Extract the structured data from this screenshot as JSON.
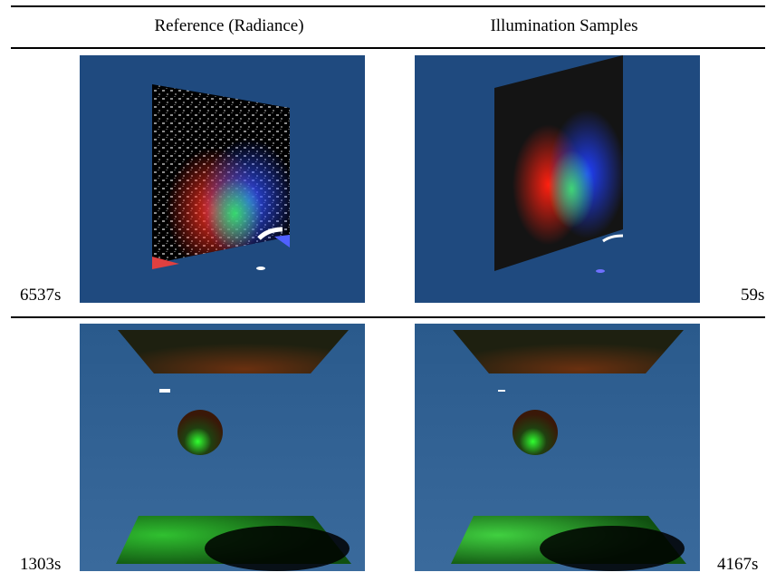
{
  "headers": {
    "left": "Reference (Radiance)",
    "right": "Illumination Samples"
  },
  "rows": [
    {
      "left_time": "6537s",
      "right_time": "59s"
    },
    {
      "left_time": "1303s",
      "right_time": "4167s"
    }
  ],
  "colors": {
    "background_blue_top": "#1f4a7f",
    "background_blue_bottom": "#336595",
    "rule": "#000000"
  }
}
